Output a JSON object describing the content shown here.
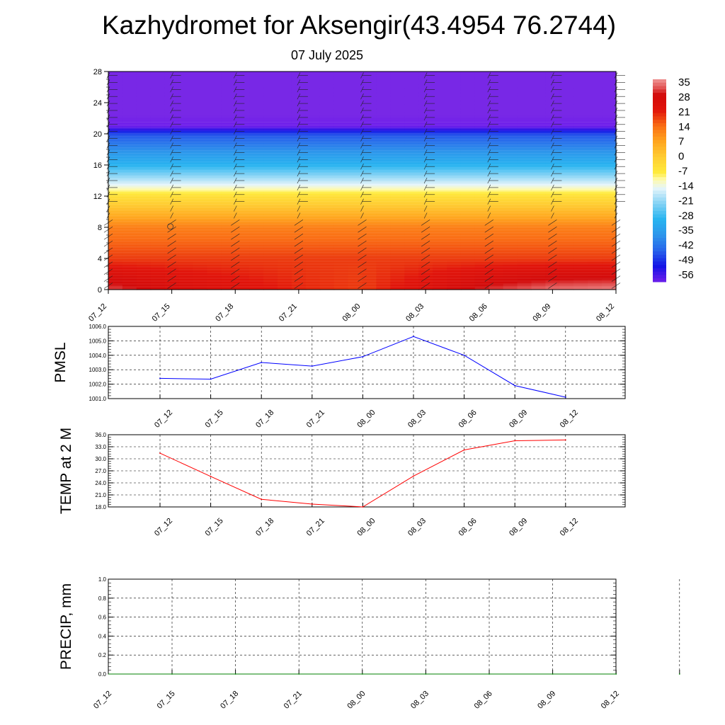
{
  "header": {
    "title": "Kazhydromet for Aksengir(43.4954 76.2744)",
    "date": "07 July 2025"
  },
  "chart_data": [
    {
      "type": "heatmap",
      "title": "",
      "x_ticks": [
        "07_12",
        "07_15",
        "07_18",
        "07_21",
        "08_00",
        "08_03",
        "08_06",
        "08_09",
        "08_12"
      ],
      "y_ticks": [
        "0",
        "4",
        "8",
        "12",
        "16",
        "20",
        "24",
        "28"
      ],
      "ylim": [
        0,
        28
      ],
      "colorbar": {
        "labels": [
          "35",
          "28",
          "21",
          "14",
          "7",
          "0",
          "-7",
          "-14",
          "-21",
          "-28",
          "-35",
          "-42",
          "-49",
          "-56"
        ],
        "range": [
          -56,
          35
        ]
      },
      "level_profile": [
        {
          "level": 0,
          "value": 27
        },
        {
          "level": 4,
          "value": 18
        },
        {
          "level": 8,
          "value": 12
        },
        {
          "level": 12,
          "value": -4
        },
        {
          "level": 13.5,
          "value": -14
        },
        {
          "level": 16,
          "value": -28
        },
        {
          "level": 20,
          "value": -44
        },
        {
          "level": 21,
          "value": -56
        },
        {
          "level": 22.5,
          "value": -60
        },
        {
          "level": 28,
          "value": -60
        }
      ],
      "surface_values": [
        31,
        26,
        23,
        20,
        18,
        24,
        30,
        33,
        34
      ]
    },
    {
      "type": "line",
      "ylabel": "PMSL",
      "ylim": [
        1001.0,
        1006.0
      ],
      "y_ticks": [
        "1001.0",
        "1002.0",
        "1003.0",
        "1004.0",
        "1005.0",
        "1006.0"
      ],
      "categories": [
        "07_12",
        "07_15",
        "07_18",
        "07_21",
        "08_00",
        "08_03",
        "08_06",
        "08_09",
        "08_12"
      ],
      "values": [
        1002.4,
        1002.35,
        1003.5,
        1003.25,
        1003.9,
        1005.3,
        1004.0,
        1001.9,
        1001.1
      ],
      "color": "#0000ff"
    },
    {
      "type": "line",
      "ylabel": "TEMP at 2 M",
      "ylim": [
        18.0,
        36.0
      ],
      "y_ticks": [
        "18.0",
        "21.0",
        "24.0",
        "27.0",
        "30.0",
        "33.0",
        "36.0"
      ],
      "categories": [
        "07_12",
        "07_15",
        "07_18",
        "07_21",
        "08_00",
        "08_03",
        "08_06",
        "08_09",
        "08_12"
      ],
      "values": [
        31.4,
        25.6,
        19.9,
        18.7,
        18.0,
        25.7,
        32.2,
        34.5,
        34.7
      ],
      "color": "#ff0000"
    },
    {
      "type": "line",
      "ylabel": "PRECIP, mm",
      "ylim": [
        0.0,
        1.0
      ],
      "y_ticks": [
        "0.0",
        "0.2",
        "0.4",
        "0.6",
        "0.8",
        "1.0"
      ],
      "categories": [
        "07_12",
        "07_15",
        "07_18",
        "07_21",
        "08_00",
        "08_03",
        "08_06",
        "08_09",
        "08_12"
      ],
      "values": [
        0,
        0,
        0,
        0,
        0,
        0,
        0,
        0,
        0
      ],
      "color": "#008000"
    }
  ]
}
